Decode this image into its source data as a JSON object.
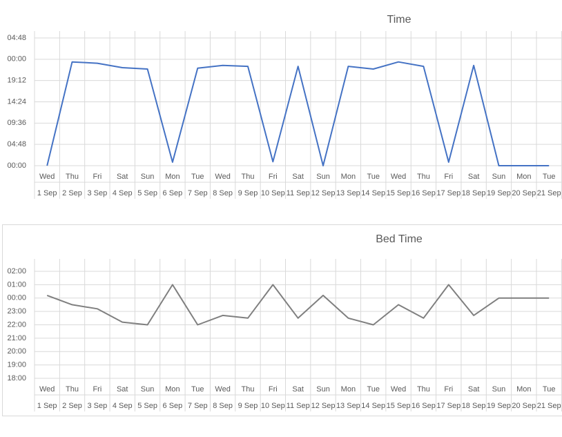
{
  "chart_data": [
    {
      "type": "line",
      "title": "Time",
      "categories": [
        "1 Sep",
        "2 Sep",
        "3 Sep",
        "4 Sep",
        "5 Sep",
        "6 Sep",
        "7 Sep",
        "8 Sep",
        "9 Sep",
        "10 Sep",
        "11 Sep",
        "12 Sep",
        "13 Sep",
        "14 Sep",
        "15 Sep",
        "16 Sep",
        "17 Sep",
        "18 Sep",
        "19 Sep",
        "20 Sep",
        "21 Sep"
      ],
      "category_days": [
        "Wed",
        "Thu",
        "Fri",
        "Sat",
        "Sun",
        "Mon",
        "Tue",
        "Wed",
        "Thu",
        "Fri",
        "Sat",
        "Sun",
        "Mon",
        "Tue",
        "Wed",
        "Thu",
        "Fri",
        "Sat",
        "Sun",
        "Mon",
        "Tue"
      ],
      "values": [
        0,
        23.4,
        23.1,
        22.1,
        21.8,
        0.8,
        22.0,
        22.6,
        22.4,
        0.9,
        22.4,
        0,
        22.4,
        21.8,
        23.4,
        22.4,
        0.8,
        22.6,
        0,
        0,
        0
      ],
      "color": "#4472c4",
      "ylim": [
        0,
        28.8
      ],
      "yticks": [
        {
          "value": 0,
          "label": "00:00"
        },
        {
          "value": 4.8,
          "label": "04:48"
        },
        {
          "value": 9.6,
          "label": "09:36"
        },
        {
          "value": 14.4,
          "label": "14:24"
        },
        {
          "value": 19.2,
          "label": "19:12"
        },
        {
          "value": 24,
          "label": "00:00"
        },
        {
          "value": 28.8,
          "label": "04:48"
        }
      ],
      "grid": true
    },
    {
      "type": "line",
      "title": "Bed Time",
      "categories": [
        "1 Sep",
        "2 Sep",
        "3 Sep",
        "4 Sep",
        "5 Sep",
        "6 Sep",
        "7 Sep",
        "8 Sep",
        "9 Sep",
        "10 Sep",
        "11 Sep",
        "12 Sep",
        "13 Sep",
        "14 Sep",
        "15 Sep",
        "16 Sep",
        "17 Sep",
        "18 Sep",
        "19 Sep",
        "20 Sep",
        "21 Sep"
      ],
      "category_days": [
        "Wed",
        "Thu",
        "Fri",
        "Sat",
        "Sun",
        "Mon",
        "Tue",
        "Wed",
        "Thu",
        "Fri",
        "Sat",
        "Sun",
        "Mon",
        "Tue",
        "Wed",
        "Thu",
        "Fri",
        "Sat",
        "Sun",
        "Mon",
        "Tue"
      ],
      "values": [
        24.2,
        23.5,
        23.2,
        22.2,
        22.0,
        25.0,
        22.0,
        22.7,
        22.5,
        25.0,
        22.5,
        24.2,
        22.5,
        22.0,
        23.5,
        22.5,
        25.0,
        22.7,
        24.0,
        24.0,
        24.0
      ],
      "color": "#7f7f7f",
      "ylim": [
        18,
        26
      ],
      "yticks": [
        {
          "value": 18,
          "label": "18:00"
        },
        {
          "value": 19,
          "label": "19:00"
        },
        {
          "value": 20,
          "label": "20:00"
        },
        {
          "value": 21,
          "label": "21:00"
        },
        {
          "value": 22,
          "label": "22:00"
        },
        {
          "value": 23,
          "label": "23:00"
        },
        {
          "value": 24,
          "label": "00:00"
        },
        {
          "value": 25,
          "label": "01:00"
        },
        {
          "value": 26,
          "label": "02:00"
        }
      ],
      "grid": true
    }
  ]
}
